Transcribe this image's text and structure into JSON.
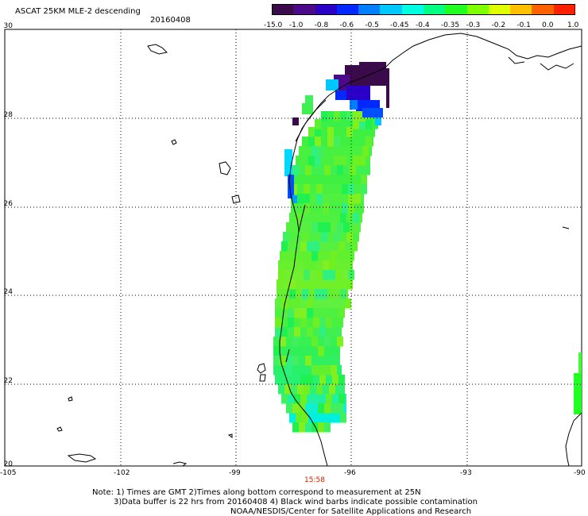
{
  "header": {
    "title": "ASCAT 25KM MLE-2 descending",
    "date": "20160408"
  },
  "colorbar": {
    "labels": [
      "-15.0",
      "-1.0",
      "-0.8",
      "-0.6",
      "-0.5",
      "-0.45",
      "-0.4",
      "-0.35",
      "-0.3",
      "-0.2",
      "-0.1",
      "0.0",
      "1.0"
    ],
    "colors": [
      "#3a0a4a",
      "#4a0a8a",
      "#2a00c8",
      "#0028ff",
      "#0080ff",
      "#00c8ff",
      "#00ffe0",
      "#00ff80",
      "#20ff20",
      "#80ff00",
      "#e0ff00",
      "#ffc000",
      "#ff6000",
      "#ff2000"
    ]
  },
  "axes": {
    "lat_labels": [
      "30",
      "28",
      "26",
      "24",
      "22",
      "20"
    ],
    "lon_labels": [
      "-105",
      "-102",
      "-99",
      "-96",
      "-93",
      "-90"
    ]
  },
  "time_label": "15:58",
  "notes": {
    "line1": "Note: 1) Times are GMT 2)Times along bottom correspond to measurement at 25N",
    "line2": "3)Data buffer is 22 hrs from 20160408 4) Black wind barbs indicate possible contamination",
    "line3": "NOAA/NESDIS/Center for Satellite Applications and Research"
  },
  "colors": {
    "time_label": "#cc2200",
    "grid": "#000000"
  }
}
